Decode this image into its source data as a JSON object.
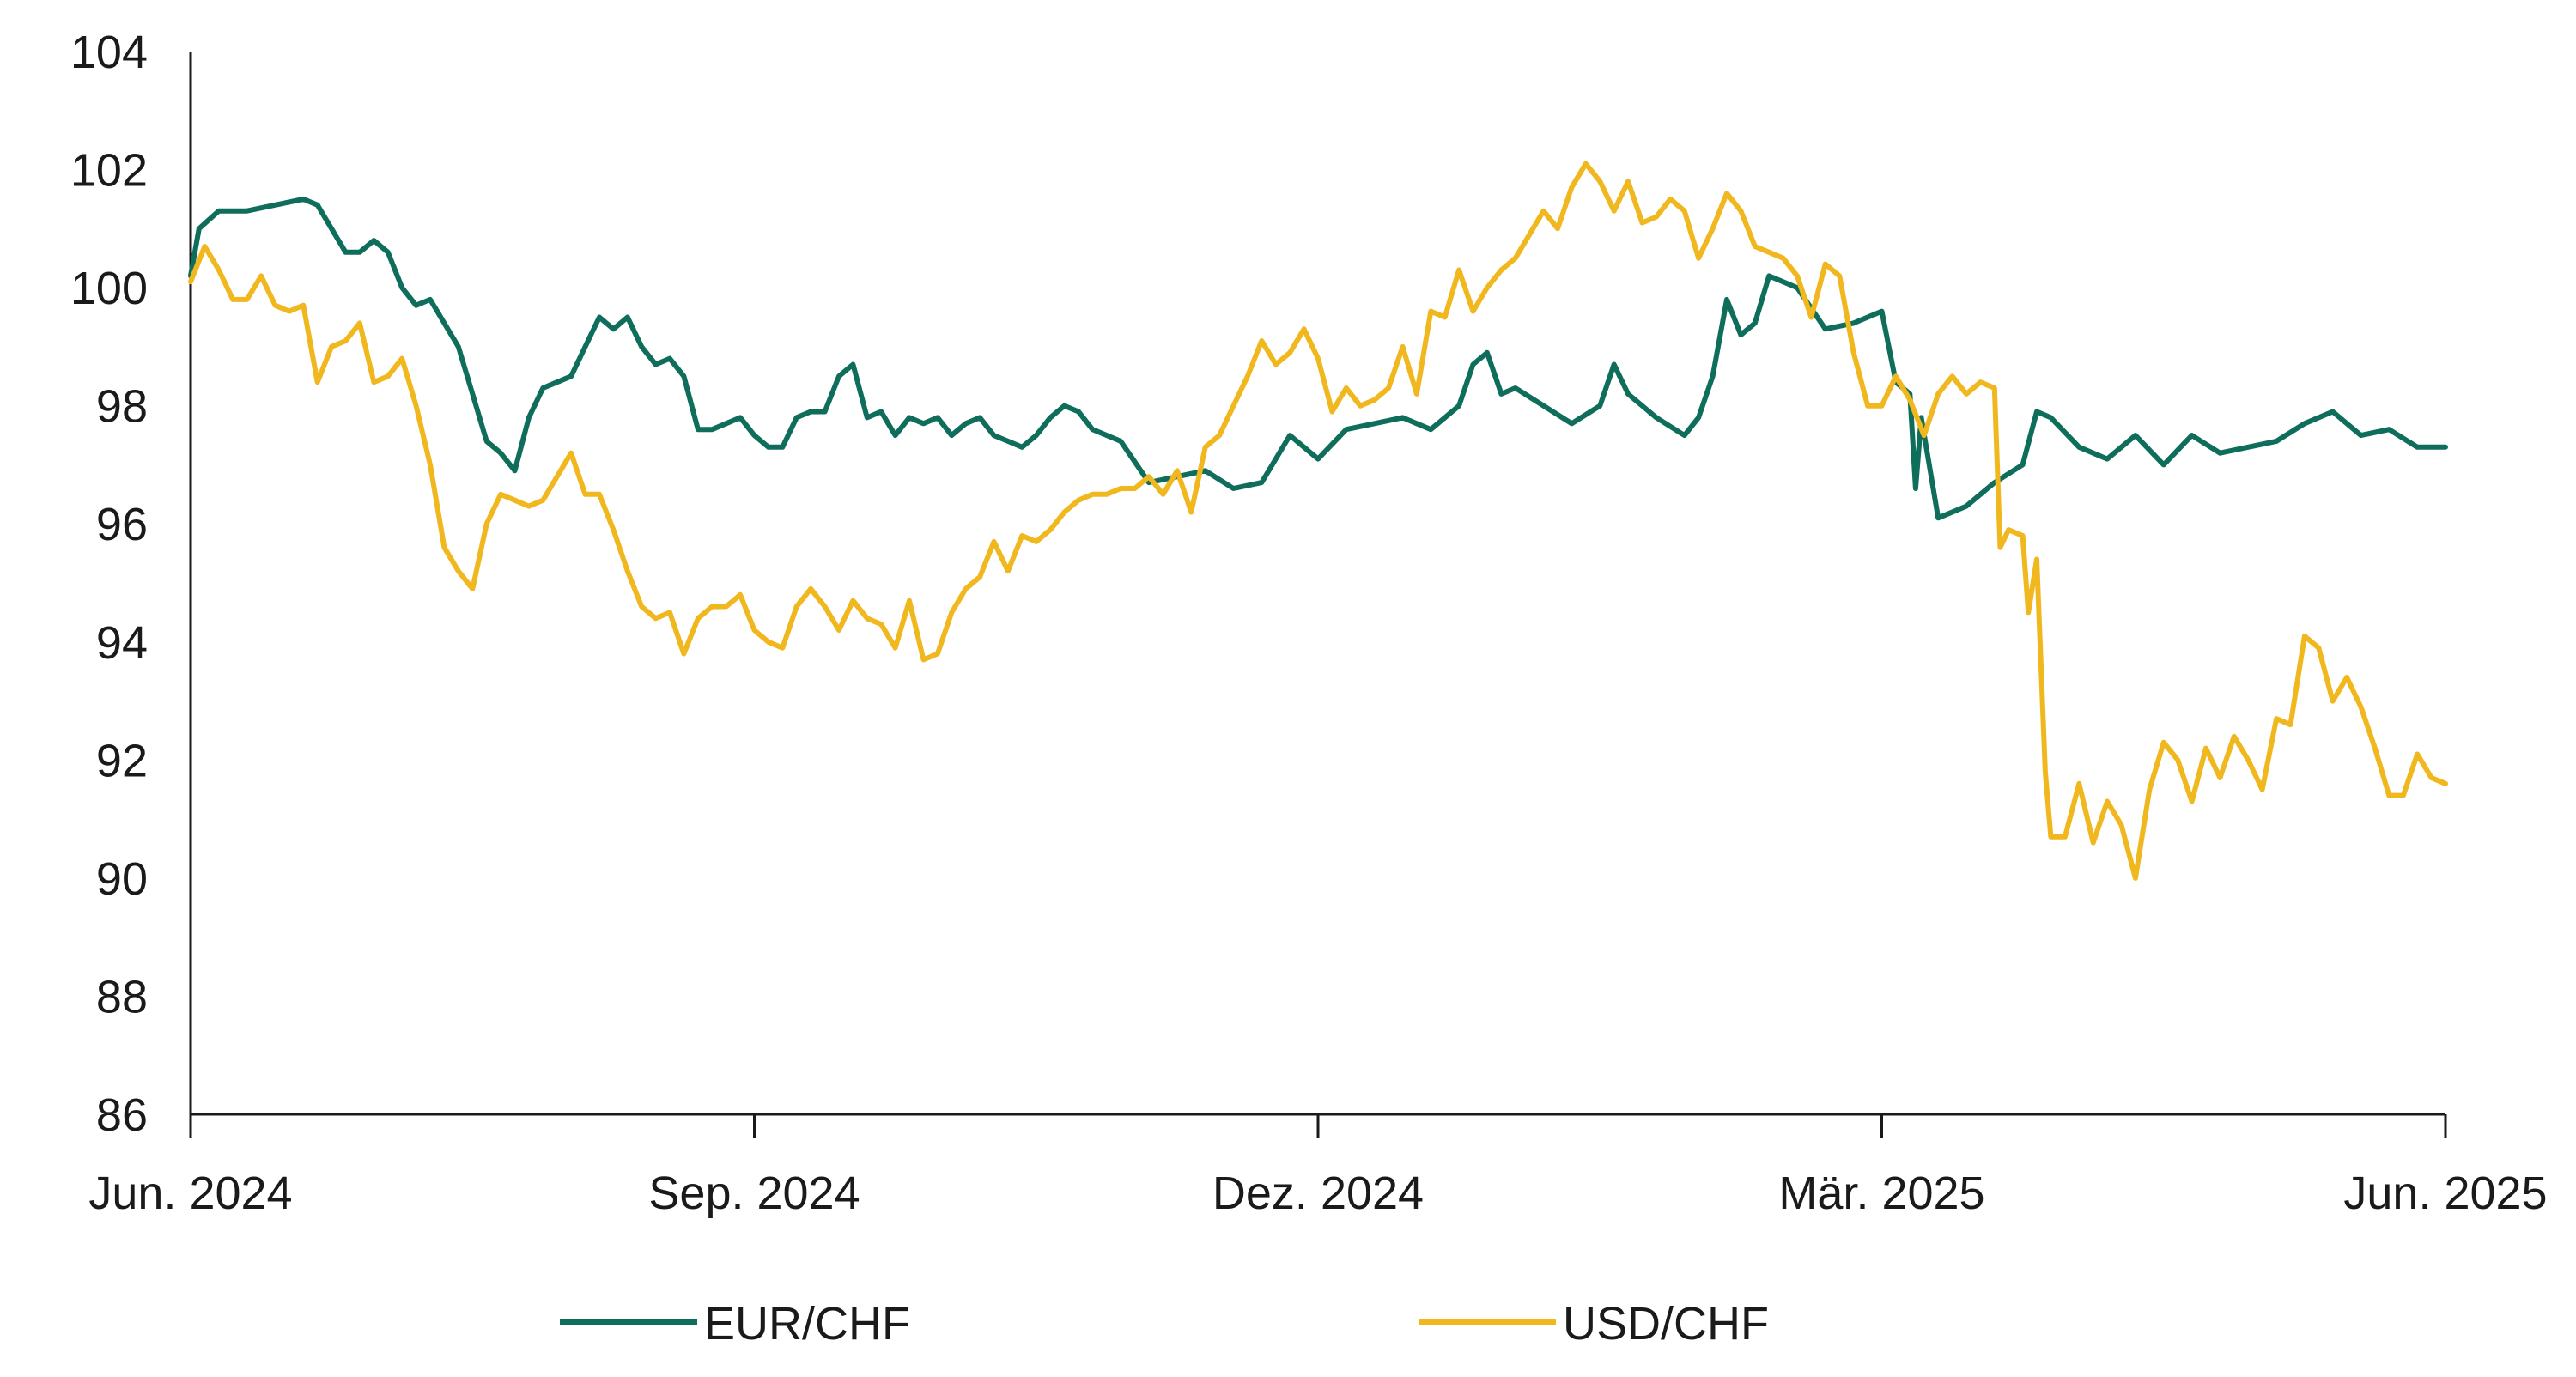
{
  "chart_data": {
    "type": "line",
    "title": "",
    "xlabel": "",
    "ylabel": "",
    "ylim": [
      86,
      104
    ],
    "yticks": [
      "86",
      "88",
      "90",
      "92",
      "94",
      "96",
      "98",
      "100",
      "102",
      "104"
    ],
    "xticks": [
      "Jun. 2024",
      "Sep. 2024",
      "Dez. 2024",
      "Mär. 2025",
      "Jun. 2025"
    ],
    "grid": false,
    "legend_position": "bottom",
    "series": [
      {
        "name": "EUR/CHF",
        "color": "#0f6e5b",
        "points": [
          [
            0,
            100.2
          ],
          [
            0.03,
            101.0
          ],
          [
            0.1,
            101.3
          ],
          [
            0.2,
            101.3
          ],
          [
            0.3,
            101.4
          ],
          [
            0.4,
            101.5
          ],
          [
            0.45,
            101.4
          ],
          [
            0.5,
            101.0
          ],
          [
            0.55,
            100.6
          ],
          [
            0.6,
            100.6
          ],
          [
            0.65,
            100.8
          ],
          [
            0.7,
            100.6
          ],
          [
            0.75,
            100.0
          ],
          [
            0.8,
            99.7
          ],
          [
            0.85,
            99.8
          ],
          [
            0.9,
            99.4
          ],
          [
            0.95,
            99.0
          ],
          [
            1.0,
            98.2
          ],
          [
            1.05,
            97.4
          ],
          [
            1.1,
            97.2
          ],
          [
            1.15,
            96.9
          ],
          [
            1.2,
            97.8
          ],
          [
            1.25,
            98.3
          ],
          [
            1.3,
            98.4
          ],
          [
            1.35,
            98.5
          ],
          [
            1.4,
            99.0
          ],
          [
            1.45,
            99.5
          ],
          [
            1.5,
            99.3
          ],
          [
            1.55,
            99.5
          ],
          [
            1.6,
            99.0
          ],
          [
            1.65,
            98.7
          ],
          [
            1.7,
            98.8
          ],
          [
            1.75,
            98.5
          ],
          [
            1.8,
            97.6
          ],
          [
            1.85,
            97.6
          ],
          [
            1.9,
            97.7
          ],
          [
            1.95,
            97.8
          ],
          [
            2.0,
            97.5
          ],
          [
            2.05,
            97.3
          ],
          [
            2.1,
            97.3
          ],
          [
            2.15,
            97.8
          ],
          [
            2.2,
            97.9
          ],
          [
            2.25,
            97.9
          ],
          [
            2.3,
            98.5
          ],
          [
            2.35,
            98.7
          ],
          [
            2.4,
            97.8
          ],
          [
            2.45,
            97.9
          ],
          [
            2.5,
            97.5
          ],
          [
            2.55,
            97.8
          ],
          [
            2.6,
            97.7
          ],
          [
            2.65,
            97.8
          ],
          [
            2.7,
            97.5
          ],
          [
            2.75,
            97.7
          ],
          [
            2.8,
            97.8
          ],
          [
            2.85,
            97.5
          ],
          [
            2.9,
            97.4
          ],
          [
            2.95,
            97.3
          ],
          [
            3.0,
            97.5
          ],
          [
            3.05,
            97.8
          ],
          [
            3.1,
            98.0
          ],
          [
            3.15,
            97.9
          ],
          [
            3.2,
            97.6
          ],
          [
            3.3,
            97.4
          ],
          [
            3.4,
            96.7
          ],
          [
            3.5,
            96.8
          ],
          [
            3.6,
            96.9
          ],
          [
            3.7,
            96.6
          ],
          [
            3.8,
            96.7
          ],
          [
            3.9,
            97.5
          ],
          [
            4.0,
            97.1
          ],
          [
            4.1,
            97.6
          ],
          [
            4.2,
            97.7
          ],
          [
            4.3,
            97.8
          ],
          [
            4.4,
            97.6
          ],
          [
            4.5,
            98.0
          ],
          [
            4.55,
            98.7
          ],
          [
            4.6,
            98.9
          ],
          [
            4.65,
            98.2
          ],
          [
            4.7,
            98.3
          ],
          [
            4.8,
            98.0
          ],
          [
            4.9,
            97.7
          ],
          [
            5.0,
            98.0
          ],
          [
            5.05,
            98.7
          ],
          [
            5.1,
            98.2
          ],
          [
            5.2,
            97.8
          ],
          [
            5.3,
            97.5
          ],
          [
            5.35,
            97.8
          ],
          [
            5.4,
            98.5
          ],
          [
            5.45,
            99.8
          ],
          [
            5.5,
            99.2
          ],
          [
            5.55,
            99.4
          ],
          [
            5.6,
            100.2
          ],
          [
            5.7,
            100.0
          ],
          [
            5.8,
            99.3
          ],
          [
            5.9,
            99.4
          ],
          [
            6.0,
            99.6
          ],
          [
            6.05,
            98.4
          ],
          [
            6.1,
            98.2
          ],
          [
            6.12,
            96.6
          ],
          [
            6.14,
            97.8
          ],
          [
            6.2,
            96.1
          ],
          [
            6.3,
            96.3
          ],
          [
            6.4,
            96.7
          ],
          [
            6.5,
            97.0
          ],
          [
            6.55,
            97.9
          ],
          [
            6.6,
            97.8
          ],
          [
            6.7,
            97.3
          ],
          [
            6.8,
            97.1
          ],
          [
            6.9,
            97.5
          ],
          [
            7.0,
            97.0
          ],
          [
            7.1,
            97.5
          ],
          [
            7.2,
            97.2
          ],
          [
            7.3,
            97.3
          ],
          [
            7.4,
            97.4
          ],
          [
            7.5,
            97.7
          ],
          [
            7.6,
            97.9
          ],
          [
            7.7,
            97.5
          ],
          [
            7.8,
            97.6
          ],
          [
            7.9,
            97.3
          ],
          [
            8.0,
            97.3
          ]
        ]
      },
      {
        "name": "USD/CHF",
        "color": "#f0b81e",
        "points": [
          [
            0,
            100.1
          ],
          [
            0.05,
            100.7
          ],
          [
            0.1,
            100.3
          ],
          [
            0.15,
            99.8
          ],
          [
            0.2,
            99.8
          ],
          [
            0.25,
            100.2
          ],
          [
            0.3,
            99.7
          ],
          [
            0.35,
            99.6
          ],
          [
            0.4,
            99.7
          ],
          [
            0.45,
            98.4
          ],
          [
            0.5,
            99.0
          ],
          [
            0.55,
            99.1
          ],
          [
            0.6,
            99.4
          ],
          [
            0.65,
            98.4
          ],
          [
            0.7,
            98.5
          ],
          [
            0.75,
            98.8
          ],
          [
            0.8,
            98.0
          ],
          [
            0.85,
            97.0
          ],
          [
            0.9,
            95.6
          ],
          [
            0.95,
            95.2
          ],
          [
            1.0,
            94.9
          ],
          [
            1.05,
            96.0
          ],
          [
            1.1,
            96.5
          ],
          [
            1.15,
            96.4
          ],
          [
            1.2,
            96.3
          ],
          [
            1.25,
            96.4
          ],
          [
            1.3,
            96.8
          ],
          [
            1.35,
            97.2
          ],
          [
            1.4,
            96.5
          ],
          [
            1.45,
            96.5
          ],
          [
            1.5,
            95.9
          ],
          [
            1.55,
            95.2
          ],
          [
            1.6,
            94.6
          ],
          [
            1.65,
            94.4
          ],
          [
            1.7,
            94.5
          ],
          [
            1.75,
            93.8
          ],
          [
            1.8,
            94.4
          ],
          [
            1.85,
            94.6
          ],
          [
            1.9,
            94.6
          ],
          [
            1.95,
            94.8
          ],
          [
            2.0,
            94.2
          ],
          [
            2.05,
            94.0
          ],
          [
            2.1,
            93.9
          ],
          [
            2.15,
            94.6
          ],
          [
            2.2,
            94.9
          ],
          [
            2.25,
            94.6
          ],
          [
            2.3,
            94.2
          ],
          [
            2.35,
            94.7
          ],
          [
            2.4,
            94.4
          ],
          [
            2.45,
            94.3
          ],
          [
            2.5,
            93.9
          ],
          [
            2.55,
            94.7
          ],
          [
            2.6,
            93.7
          ],
          [
            2.65,
            93.8
          ],
          [
            2.7,
            94.5
          ],
          [
            2.75,
            94.9
          ],
          [
            2.8,
            95.1
          ],
          [
            2.85,
            95.7
          ],
          [
            2.9,
            95.2
          ],
          [
            2.95,
            95.8
          ],
          [
            3.0,
            95.7
          ],
          [
            3.05,
            95.9
          ],
          [
            3.1,
            96.2
          ],
          [
            3.15,
            96.4
          ],
          [
            3.2,
            96.5
          ],
          [
            3.25,
            96.5
          ],
          [
            3.3,
            96.6
          ],
          [
            3.35,
            96.6
          ],
          [
            3.4,
            96.8
          ],
          [
            3.45,
            96.5
          ],
          [
            3.5,
            96.9
          ],
          [
            3.55,
            96.2
          ],
          [
            3.6,
            97.3
          ],
          [
            3.65,
            97.5
          ],
          [
            3.7,
            98.0
          ],
          [
            3.75,
            98.5
          ],
          [
            3.8,
            99.1
          ],
          [
            3.85,
            98.7
          ],
          [
            3.9,
            98.9
          ],
          [
            3.95,
            99.3
          ],
          [
            4.0,
            98.8
          ],
          [
            4.05,
            97.9
          ],
          [
            4.1,
            98.3
          ],
          [
            4.15,
            98.0
          ],
          [
            4.2,
            98.1
          ],
          [
            4.25,
            98.3
          ],
          [
            4.3,
            99.0
          ],
          [
            4.35,
            98.2
          ],
          [
            4.4,
            99.6
          ],
          [
            4.45,
            99.5
          ],
          [
            4.5,
            100.3
          ],
          [
            4.55,
            99.6
          ],
          [
            4.6,
            100.0
          ],
          [
            4.65,
            100.3
          ],
          [
            4.7,
            100.5
          ],
          [
            4.75,
            100.9
          ],
          [
            4.8,
            101.3
          ],
          [
            4.85,
            101.0
          ],
          [
            4.9,
            101.7
          ],
          [
            4.95,
            102.1
          ],
          [
            5.0,
            101.8
          ],
          [
            5.05,
            101.3
          ],
          [
            5.1,
            101.8
          ],
          [
            5.15,
            101.1
          ],
          [
            5.2,
            101.2
          ],
          [
            5.25,
            101.5
          ],
          [
            5.3,
            101.3
          ],
          [
            5.35,
            100.5
          ],
          [
            5.4,
            101.0
          ],
          [
            5.45,
            101.6
          ],
          [
            5.5,
            101.3
          ],
          [
            5.55,
            100.7
          ],
          [
            5.6,
            100.6
          ],
          [
            5.65,
            100.5
          ],
          [
            5.7,
            100.2
          ],
          [
            5.75,
            99.5
          ],
          [
            5.8,
            100.4
          ],
          [
            5.85,
            100.2
          ],
          [
            5.9,
            98.9
          ],
          [
            5.95,
            98.0
          ],
          [
            6.0,
            98.0
          ],
          [
            6.05,
            98.5
          ],
          [
            6.1,
            98.1
          ],
          [
            6.15,
            97.5
          ],
          [
            6.2,
            98.2
          ],
          [
            6.25,
            98.5
          ],
          [
            6.3,
            98.2
          ],
          [
            6.35,
            98.4
          ],
          [
            6.4,
            98.3
          ],
          [
            6.42,
            95.6
          ],
          [
            6.45,
            95.9
          ],
          [
            6.5,
            95.8
          ],
          [
            6.52,
            94.5
          ],
          [
            6.55,
            95.4
          ],
          [
            6.58,
            91.8
          ],
          [
            6.6,
            90.7
          ],
          [
            6.65,
            90.7
          ],
          [
            6.7,
            91.6
          ],
          [
            6.75,
            90.6
          ],
          [
            6.8,
            91.3
          ],
          [
            6.85,
            90.9
          ],
          [
            6.9,
            90.0
          ],
          [
            6.95,
            91.5
          ],
          [
            7.0,
            92.3
          ],
          [
            7.05,
            92.0
          ],
          [
            7.1,
            91.3
          ],
          [
            7.15,
            92.2
          ],
          [
            7.2,
            91.7
          ],
          [
            7.25,
            92.4
          ],
          [
            7.3,
            92.0
          ],
          [
            7.35,
            91.5
          ],
          [
            7.4,
            92.7
          ],
          [
            7.45,
            92.6
          ],
          [
            7.5,
            94.1
          ],
          [
            7.55,
            93.9
          ],
          [
            7.6,
            93.0
          ],
          [
            7.65,
            93.4
          ],
          [
            7.7,
            92.9
          ],
          [
            7.75,
            92.2
          ],
          [
            7.8,
            91.4
          ],
          [
            7.85,
            91.4
          ],
          [
            7.9,
            92.1
          ],
          [
            7.95,
            91.7
          ],
          [
            8.0,
            91.6
          ]
        ]
      }
    ]
  }
}
